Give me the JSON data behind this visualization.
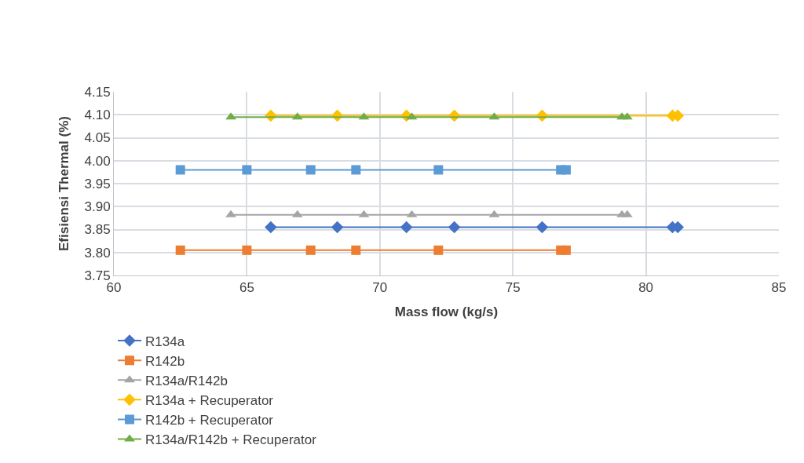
{
  "chart_data": {
    "type": "line",
    "xlabel": "Mass flow (kg/s)",
    "ylabel": "Efisiensi Thermal (%)",
    "xlim": [
      60,
      85
    ],
    "xticks": [
      60,
      65,
      70,
      75,
      80,
      85
    ],
    "ylim": [
      3.75,
      4.15
    ],
    "yticks": [
      3.75,
      {
        "value": 3.8,
        "label": "3.80"
      },
      3.85,
      {
        "value": 3.9,
        "label": "3.90"
      },
      3.95,
      {
        "value": 4.0,
        "label": "4.00"
      },
      4.05,
      {
        "value": 4.1,
        "label": "4.10"
      },
      4.15
    ],
    "grid": true,
    "legend": "bottom",
    "series": [
      {
        "name": "R134a",
        "color": "#4472c4",
        "marker": "diamond",
        "x": [
          65.9,
          68.4,
          71.0,
          72.8,
          76.1,
          81.0,
          81.2
        ],
        "values": [
          3.855,
          3.855,
          3.855,
          3.855,
          3.855,
          3.855,
          3.855
        ]
      },
      {
        "name": "R142b",
        "color": "#ed7d31",
        "marker": "square",
        "x": [
          62.5,
          65.0,
          67.4,
          69.1,
          72.2,
          76.8,
          77.0
        ],
        "values": [
          3.805,
          3.805,
          3.805,
          3.805,
          3.805,
          3.805,
          3.805
        ]
      },
      {
        "name": "R134a/R142b",
        "color": "#a5a5a5",
        "marker": "triangle",
        "x": [
          64.4,
          66.9,
          69.4,
          71.2,
          74.3,
          79.1,
          79.3
        ],
        "values": [
          3.882,
          3.882,
          3.882,
          3.882,
          3.882,
          3.882,
          3.882
        ]
      },
      {
        "name": "R134a + Recuperator",
        "color": "#ffc000",
        "marker": "diamond",
        "x": [
          65.9,
          68.4,
          71.0,
          72.8,
          76.1,
          81.0,
          81.2
        ],
        "values": [
          4.098,
          4.098,
          4.098,
          4.098,
          4.098,
          4.098,
          4.098
        ]
      },
      {
        "name": "R142b + Recuperator",
        "color": "#5b9bd5",
        "marker": "square",
        "x": [
          62.5,
          65.0,
          67.4,
          69.1,
          72.2,
          76.8,
          77.0
        ],
        "values": [
          3.98,
          3.98,
          3.98,
          3.98,
          3.98,
          3.98,
          3.98
        ]
      },
      {
        "name": "R134a/R142b + Recuperator",
        "color": "#70ad47",
        "marker": "triangle",
        "x": [
          64.4,
          66.9,
          69.4,
          71.2,
          74.3,
          79.1,
          79.3
        ],
        "values": [
          4.095,
          4.095,
          4.095,
          4.095,
          4.095,
          4.095,
          4.095
        ]
      }
    ]
  }
}
